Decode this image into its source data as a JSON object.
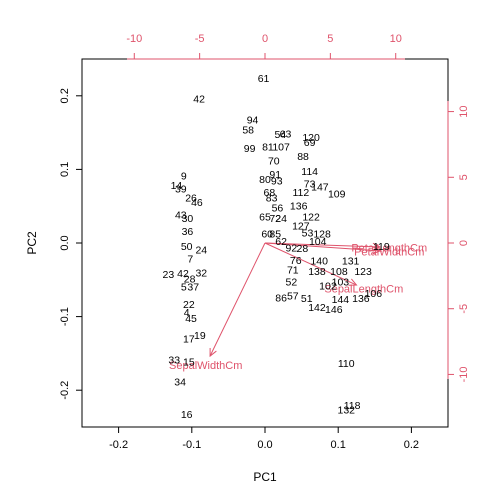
{
  "chart_data": {
    "type": "scatter",
    "title": "",
    "xlabel": "PC1",
    "ylabel": "PC2",
    "xlim": [
      -0.25,
      0.25
    ],
    "ylim": [
      -0.25,
      0.25
    ],
    "x_ticks": [
      "-0.2",
      "-0.1",
      "0.0",
      "0.1",
      "0.2"
    ],
    "y_ticks": [
      "-0.2",
      "-0.1",
      "0.0",
      "0.1",
      "0.2"
    ],
    "secondary_x_ticks": [
      "-10",
      "-5",
      "0",
      "5",
      "10"
    ],
    "secondary_y_ticks": [
      "-10",
      "-5",
      "0",
      "5",
      "10"
    ],
    "secondary_lim": [
      -14,
      14
    ],
    "grid": false,
    "arrow_color": "#df536b",
    "loadings": [
      {
        "label": "SepalLengthCm",
        "x": 7.0,
        "y": -3.2
      },
      {
        "label": "SepalWidthCm",
        "x": -4.2,
        "y": -8.6
      },
      {
        "label": "PetalLengthCm",
        "x": 8.8,
        "y": -0.3
      },
      {
        "label": "PetalWidthCm",
        "x": 8.8,
        "y": -0.6
      }
    ],
    "points": [
      {
        "label": "61",
        "x": -0.002,
        "y": 0.224
      },
      {
        "label": "42",
        "x": -0.09,
        "y": 0.196
      },
      {
        "label": "94",
        "x": -0.017,
        "y": 0.168
      },
      {
        "label": "58",
        "x": -0.023,
        "y": 0.154
      },
      {
        "label": "63",
        "x": 0.028,
        "y": 0.149
      },
      {
        "label": "54",
        "x": 0.021,
        "y": 0.148
      },
      {
        "label": "120",
        "x": 0.063,
        "y": 0.144
      },
      {
        "label": "69",
        "x": 0.061,
        "y": 0.137
      },
      {
        "label": "99",
        "x": -0.021,
        "y": 0.129
      },
      {
        "label": "81",
        "x": 0.004,
        "y": 0.131
      },
      {
        "label": "107",
        "x": 0.022,
        "y": 0.131
      },
      {
        "label": "88",
        "x": 0.052,
        "y": 0.118
      },
      {
        "label": "70",
        "x": 0.012,
        "y": 0.112
      },
      {
        "label": "91",
        "x": 0.014,
        "y": 0.094
      },
      {
        "label": "114",
        "x": 0.061,
        "y": 0.098
      },
      {
        "label": "9",
        "x": -0.111,
        "y": 0.092
      },
      {
        "label": "80",
        "x": 0.0,
        "y": 0.087
      },
      {
        "label": "93",
        "x": 0.016,
        "y": 0.085
      },
      {
        "label": "73",
        "x": 0.061,
        "y": 0.081
      },
      {
        "label": "147",
        "x": 0.075,
        "y": 0.077
      },
      {
        "label": "14",
        "x": -0.121,
        "y": 0.079
      },
      {
        "label": "39",
        "x": -0.115,
        "y": 0.074
      },
      {
        "label": "68",
        "x": 0.006,
        "y": 0.069
      },
      {
        "label": "112",
        "x": 0.049,
        "y": 0.069
      },
      {
        "label": "109",
        "x": 0.098,
        "y": 0.067
      },
      {
        "label": "26",
        "x": -0.101,
        "y": 0.062
      },
      {
        "label": "46",
        "x": -0.093,
        "y": 0.056
      },
      {
        "label": "83",
        "x": 0.009,
        "y": 0.062
      },
      {
        "label": "56",
        "x": 0.017,
        "y": 0.048
      },
      {
        "label": "136",
        "x": 0.046,
        "y": 0.051
      },
      {
        "label": "43",
        "x": -0.115,
        "y": 0.039
      },
      {
        "label": "30",
        "x": -0.106,
        "y": 0.034
      },
      {
        "label": "65",
        "x": 0.0,
        "y": 0.036
      },
      {
        "label": "72",
        "x": 0.014,
        "y": 0.034
      },
      {
        "label": "24",
        "x": 0.022,
        "y": 0.034
      },
      {
        "label": "122",
        "x": 0.063,
        "y": 0.036
      },
      {
        "label": "127",
        "x": 0.049,
        "y": 0.024
      },
      {
        "label": "36",
        "x": -0.106,
        "y": 0.016
      },
      {
        "label": "60",
        "x": 0.003,
        "y": 0.013
      },
      {
        "label": "85",
        "x": 0.014,
        "y": 0.013
      },
      {
        "label": "53",
        "x": 0.058,
        "y": 0.014
      },
      {
        "label": "128",
        "x": 0.078,
        "y": 0.013
      },
      {
        "label": "62",
        "x": 0.022,
        "y": 0.003
      },
      {
        "label": "104",
        "x": 0.072,
        "y": 0.003
      },
      {
        "label": "50",
        "x": -0.107,
        "y": -0.004
      },
      {
        "label": "24",
        "x": -0.087,
        "y": -0.009
      },
      {
        "label": "119",
        "x": 0.159,
        "y": -0.004
      },
      {
        "label": "92",
        "x": 0.036,
        "y": -0.006
      },
      {
        "label": "28",
        "x": 0.051,
        "y": -0.007
      },
      {
        "label": "7",
        "x": -0.102,
        "y": -0.021
      },
      {
        "label": "76",
        "x": 0.042,
        "y": -0.023
      },
      {
        "label": "140",
        "x": 0.074,
        "y": -0.024
      },
      {
        "label": "131",
        "x": 0.117,
        "y": -0.024
      },
      {
        "label": "23",
        "x": -0.132,
        "y": -0.042
      },
      {
        "label": "42",
        "x": -0.112,
        "y": -0.041
      },
      {
        "label": "32",
        "x": -0.087,
        "y": -0.04
      },
      {
        "label": "71",
        "x": 0.038,
        "y": -0.036
      },
      {
        "label": "138",
        "x": 0.071,
        "y": -0.038
      },
      {
        "label": "108",
        "x": 0.101,
        "y": -0.038
      },
      {
        "label": "123",
        "x": 0.134,
        "y": -0.038
      },
      {
        "label": "28",
        "x": -0.103,
        "y": -0.048
      },
      {
        "label": "52",
        "x": 0.036,
        "y": -0.052
      },
      {
        "label": "103",
        "x": 0.103,
        "y": -0.052
      },
      {
        "label": "5",
        "x": -0.111,
        "y": -0.059
      },
      {
        "label": "37",
        "x": -0.098,
        "y": -0.059
      },
      {
        "label": "102",
        "x": 0.086,
        "y": -0.058
      },
      {
        "label": "106",
        "x": 0.148,
        "y": -0.068
      },
      {
        "label": "136",
        "x": 0.131,
        "y": -0.075
      },
      {
        "label": "86",
        "x": 0.022,
        "y": -0.074
      },
      {
        "label": "57",
        "x": 0.038,
        "y": -0.071
      },
      {
        "label": "51",
        "x": 0.057,
        "y": -0.075
      },
      {
        "label": "144",
        "x": 0.103,
        "y": -0.076
      },
      {
        "label": "22",
        "x": -0.104,
        "y": -0.083
      },
      {
        "label": "142",
        "x": 0.071,
        "y": -0.087
      },
      {
        "label": "146",
        "x": 0.094,
        "y": -0.09
      },
      {
        "label": "4",
        "x": -0.107,
        "y": -0.094
      },
      {
        "label": "45",
        "x": -0.101,
        "y": -0.102
      },
      {
        "label": "17",
        "x": -0.104,
        "y": -0.13
      },
      {
        "label": "19",
        "x": -0.089,
        "y": -0.125
      },
      {
        "label": "33",
        "x": -0.124,
        "y": -0.158
      },
      {
        "label": "15",
        "x": -0.104,
        "y": -0.161
      },
      {
        "label": "110",
        "x": 0.111,
        "y": -0.163
      },
      {
        "label": "34",
        "x": -0.116,
        "y": -0.188
      },
      {
        "label": "118",
        "x": 0.119,
        "y": -0.22
      },
      {
        "label": "132",
        "x": 0.111,
        "y": -0.226
      },
      {
        "label": "16",
        "x": -0.107,
        "y": -0.232
      }
    ]
  }
}
